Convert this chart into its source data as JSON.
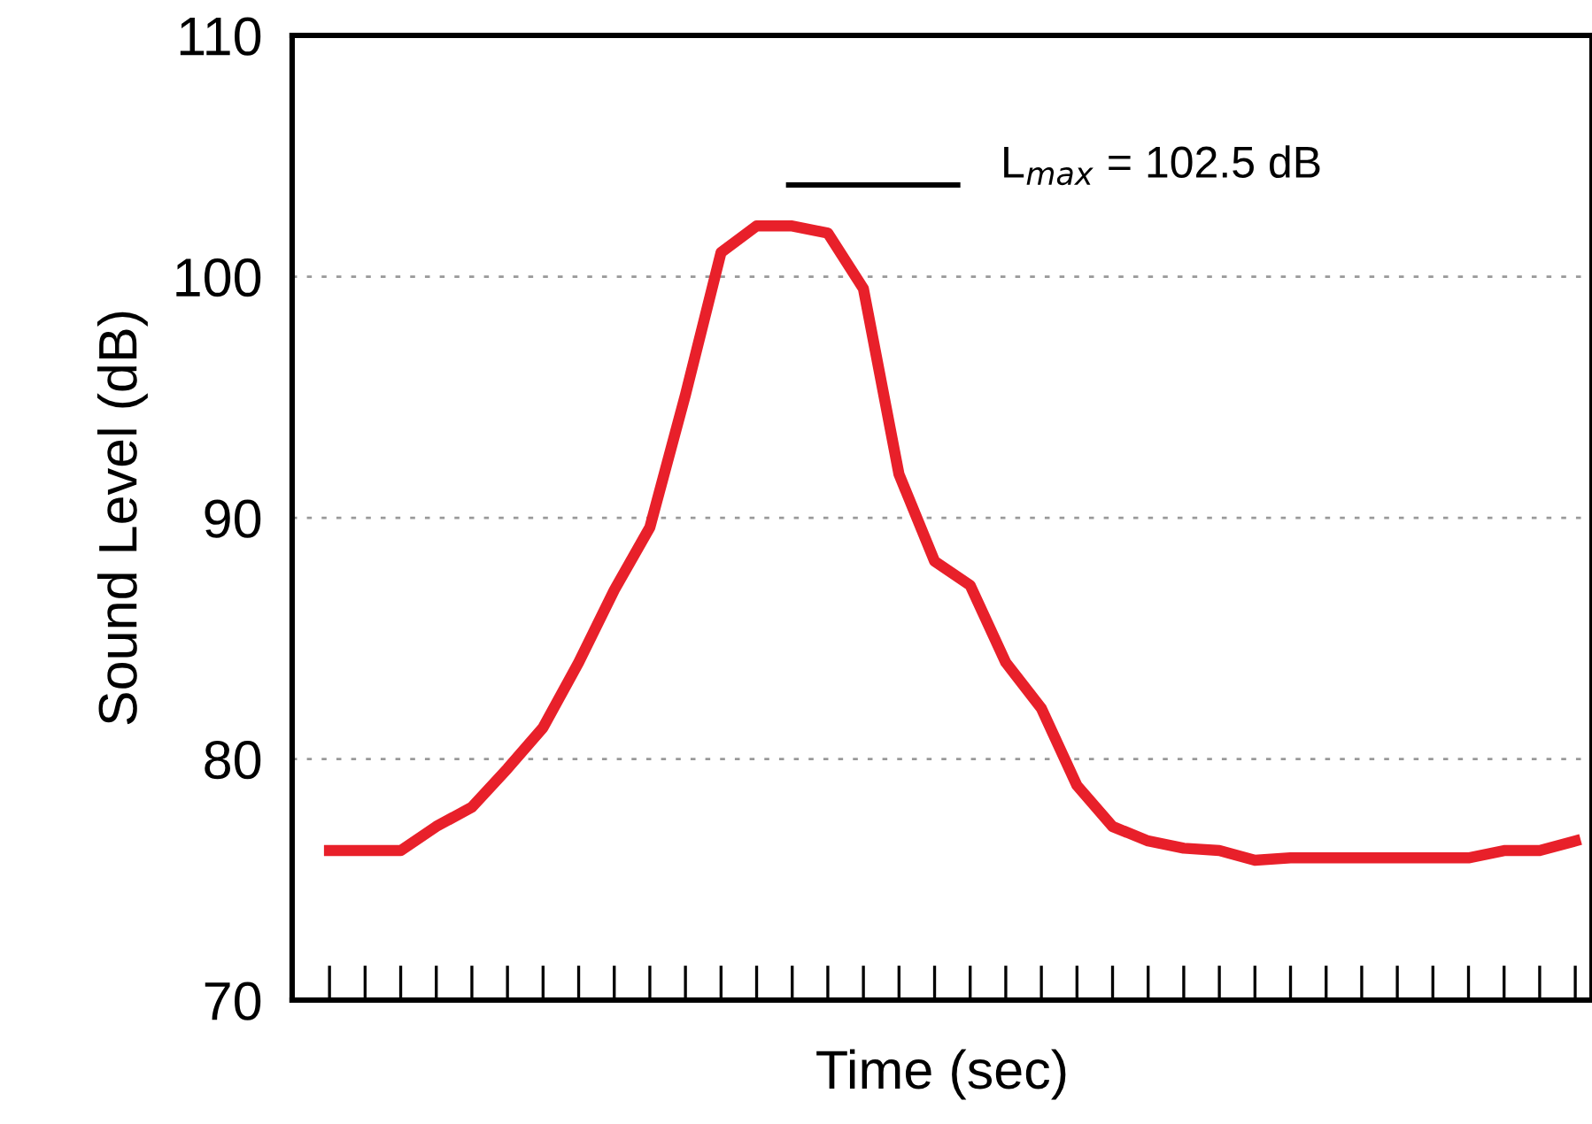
{
  "chart_data": {
    "type": "line",
    "xlabel": "Time (sec)",
    "ylabel": "Sound Level (dB)",
    "categories": [
      null,
      null,
      null,
      null,
      null,
      null,
      null,
      null,
      null,
      null,
      null,
      null,
      null,
      null,
      null,
      null,
      null,
      null,
      null,
      null,
      null,
      null,
      null,
      null,
      null,
      null,
      null,
      null,
      null,
      null,
      null,
      null,
      null,
      null,
      null,
      null
    ],
    "series": [
      {
        "color": "#e8202a",
        "values": [
          76.2,
          76.2,
          76.2,
          77.2,
          78.0,
          79.6,
          81.3,
          84.0,
          87.0,
          89.6,
          95.1,
          101.0,
          102.1,
          102.1,
          101.8,
          99.5,
          91.8,
          88.2,
          87.2,
          84.0,
          82.1,
          78.9,
          77.2,
          76.6,
          76.3,
          76.2,
          75.8,
          75.9,
          75.9,
          75.9,
          75.9,
          75.9,
          75.9,
          76.2,
          76.2,
          76.6
        ]
      }
    ],
    "ylim": [
      70,
      110
    ],
    "yticks": [
      70,
      80,
      90,
      100,
      110
    ],
    "grid": "y",
    "tick_labels": "y",
    "line_style": "solid",
    "marker": "none",
    "annotations": [
      "L$_{max}$ = 102.5 dB"
    ]
  }
}
